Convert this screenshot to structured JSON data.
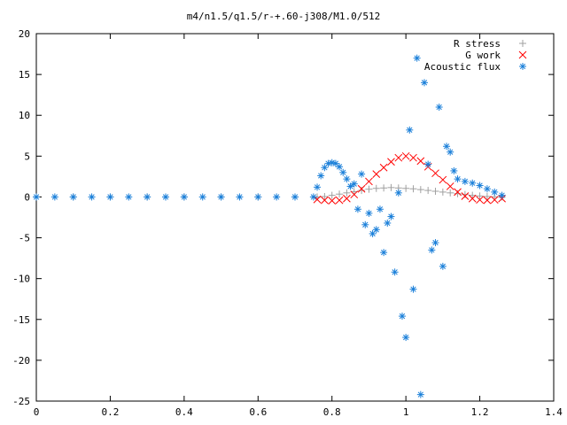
{
  "chart_data": {
    "type": "scatter",
    "title": "m4/n1.5/q1.5/r-+.60-j308/M1.0/512",
    "xlabel": "",
    "ylabel": "",
    "xlim": [
      0,
      1.4
    ],
    "ylim": [
      -25,
      20
    ],
    "x_ticks": [
      "0",
      "0.2",
      "0.4",
      "0.6",
      "0.8",
      "1",
      "1.2",
      "1.4"
    ],
    "y_ticks": [
      "20",
      "15",
      "10",
      "5",
      "0",
      "-5",
      "-10",
      "-15",
      "-20",
      "-25"
    ],
    "x_tick_values": [
      0,
      0.2,
      0.4,
      0.6,
      0.8,
      1.0,
      1.2,
      1.4
    ],
    "y_tick_values": [
      20,
      15,
      10,
      5,
      0,
      -5,
      -10,
      -15,
      -20,
      -25
    ],
    "grid": false,
    "legend_position": "top-right",
    "series": [
      {
        "name": "R stress",
        "marker": "plus",
        "color": "#a0a0a0",
        "x": [
          0.0,
          0.1,
          0.2,
          0.3,
          0.4,
          0.5,
          0.6,
          0.7,
          0.76,
          0.78,
          0.8,
          0.82,
          0.84,
          0.86,
          0.88,
          0.9,
          0.92,
          0.94,
          0.96,
          0.98,
          1.0,
          1.02,
          1.04,
          1.06,
          1.08,
          1.1,
          1.12,
          1.14,
          1.16,
          1.18,
          1.2,
          1.22,
          1.24,
          1.26
        ],
        "y": [
          0,
          0,
          0,
          0,
          0,
          0,
          0,
          0,
          0,
          0.05,
          0.2,
          0.35,
          0.5,
          0.65,
          0.8,
          0.95,
          1.05,
          1.1,
          1.15,
          1.1,
          1.05,
          1.0,
          0.9,
          0.8,
          0.7,
          0.6,
          0.5,
          0.4,
          0.3,
          0.2,
          0.12,
          0.06,
          0.02,
          0
        ]
      },
      {
        "name": "G work",
        "marker": "cross",
        "color": "#ff0000",
        "x": [
          0.76,
          0.78,
          0.8,
          0.82,
          0.84,
          0.86,
          0.88,
          0.9,
          0.92,
          0.94,
          0.96,
          0.98,
          1.0,
          1.02,
          1.04,
          1.06,
          1.08,
          1.1,
          1.12,
          1.14,
          1.16,
          1.18,
          1.2,
          1.22,
          1.24,
          1.26
        ],
        "y": [
          -0.3,
          -0.4,
          -0.45,
          -0.4,
          -0.2,
          0.3,
          1.0,
          1.9,
          2.8,
          3.6,
          4.3,
          4.8,
          5.0,
          4.8,
          4.4,
          3.7,
          2.9,
          2.1,
          1.3,
          0.6,
          0.1,
          -0.2,
          -0.35,
          -0.4,
          -0.35,
          -0.2
        ]
      },
      {
        "name": "Acoustic flux",
        "marker": "star",
        "color": "#1a7fd9",
        "x": [
          0.0,
          0.05,
          0.1,
          0.15,
          0.2,
          0.25,
          0.3,
          0.35,
          0.4,
          0.45,
          0.5,
          0.55,
          0.6,
          0.65,
          0.7,
          0.75,
          0.76,
          0.77,
          0.78,
          0.79,
          0.8,
          0.81,
          0.82,
          0.83,
          0.84,
          0.85,
          0.86,
          0.87,
          0.88,
          0.89,
          0.9,
          0.91,
          0.92,
          0.93,
          0.94,
          0.95,
          0.96,
          0.97,
          0.98,
          0.99,
          1.0,
          1.01,
          1.02,
          1.03,
          1.04,
          1.05,
          1.06,
          1.07,
          1.08,
          1.09,
          1.1,
          1.11,
          1.12,
          1.13,
          1.14,
          1.16,
          1.18,
          1.2,
          1.22,
          1.24,
          1.26
        ],
        "y": [
          0,
          0,
          0,
          0,
          0,
          0,
          0,
          0,
          0,
          0,
          0,
          0,
          0,
          0,
          0,
          0,
          1.2,
          2.6,
          3.6,
          4.1,
          4.2,
          4.1,
          3.7,
          3.0,
          2.2,
          1.3,
          1.6,
          -1.5,
          2.8,
          -3.4,
          -2.0,
          -4.5,
          -4.0,
          -1.5,
          -6.8,
          -3.2,
          -2.4,
          -9.2,
          0.5,
          -14.6,
          -17.2,
          8.2,
          -11.3,
          17.0,
          -24.2,
          14.0,
          4.0,
          -6.5,
          -5.6,
          11.0,
          -8.5,
          6.2,
          5.5,
          3.2,
          2.2,
          1.9,
          1.7,
          1.4,
          1.0,
          0.6,
          0.2
        ]
      }
    ]
  }
}
